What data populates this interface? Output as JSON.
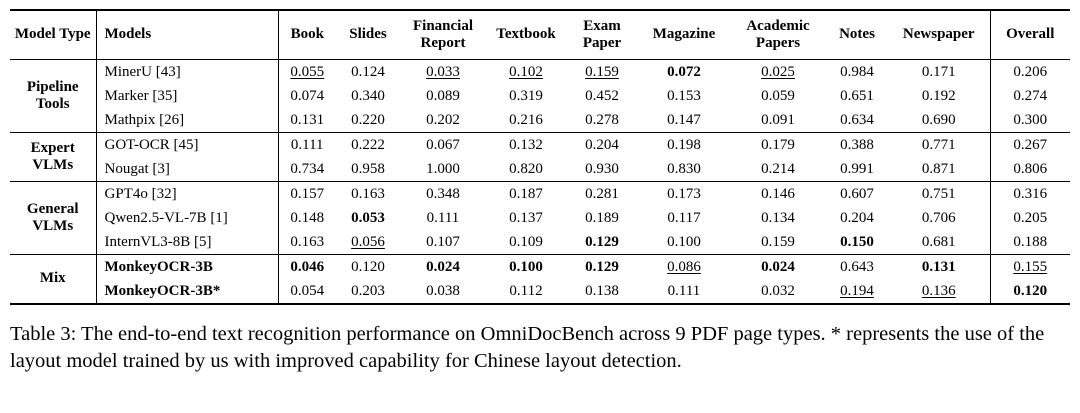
{
  "table": {
    "col_headers": [
      "Model Type",
      "Models",
      "Book",
      "Slides",
      "Financial Report",
      "Textbook",
      "Exam Paper",
      "Magazine",
      "Academic Papers",
      "Notes",
      "Newspaper",
      "Overall"
    ],
    "groups": [
      {
        "type": "Pipeline Tools",
        "rows": [
          {
            "model": "MinerU [43]",
            "model_bold": false,
            "cells": [
              {
                "t": "0.055",
                "f": "u"
              },
              {
                "t": "0.124",
                "f": ""
              },
              {
                "t": "0.033",
                "f": "u"
              },
              {
                "t": "0.102",
                "f": "u"
              },
              {
                "t": "0.159",
                "f": "u"
              },
              {
                "t": "0.072",
                "f": "b"
              },
              {
                "t": "0.025",
                "f": "u"
              },
              {
                "t": "0.984",
                "f": ""
              },
              {
                "t": "0.171",
                "f": ""
              },
              {
                "t": "0.206",
                "f": ""
              }
            ]
          },
          {
            "model": "Marker [35]",
            "model_bold": false,
            "cells": [
              {
                "t": "0.074",
                "f": ""
              },
              {
                "t": "0.340",
                "f": ""
              },
              {
                "t": "0.089",
                "f": ""
              },
              {
                "t": "0.319",
                "f": ""
              },
              {
                "t": "0.452",
                "f": ""
              },
              {
                "t": "0.153",
                "f": ""
              },
              {
                "t": "0.059",
                "f": ""
              },
              {
                "t": "0.651",
                "f": ""
              },
              {
                "t": "0.192",
                "f": ""
              },
              {
                "t": "0.274",
                "f": ""
              }
            ]
          },
          {
            "model": "Mathpix [26]",
            "model_bold": false,
            "cells": [
              {
                "t": "0.131",
                "f": ""
              },
              {
                "t": "0.220",
                "f": ""
              },
              {
                "t": "0.202",
                "f": ""
              },
              {
                "t": "0.216",
                "f": ""
              },
              {
                "t": "0.278",
                "f": ""
              },
              {
                "t": "0.147",
                "f": ""
              },
              {
                "t": "0.091",
                "f": ""
              },
              {
                "t": "0.634",
                "f": ""
              },
              {
                "t": "0.690",
                "f": ""
              },
              {
                "t": "0.300",
                "f": ""
              }
            ]
          }
        ]
      },
      {
        "type": "Expert VLMs",
        "rows": [
          {
            "model": "GOT-OCR [45]",
            "model_bold": false,
            "cells": [
              {
                "t": "0.111",
                "f": ""
              },
              {
                "t": "0.222",
                "f": ""
              },
              {
                "t": "0.067",
                "f": ""
              },
              {
                "t": "0.132",
                "f": ""
              },
              {
                "t": "0.204",
                "f": ""
              },
              {
                "t": "0.198",
                "f": ""
              },
              {
                "t": "0.179",
                "f": ""
              },
              {
                "t": "0.388",
                "f": ""
              },
              {
                "t": "0.771",
                "f": ""
              },
              {
                "t": "0.267",
                "f": ""
              }
            ]
          },
          {
            "model": "Nougat [3]",
            "model_bold": false,
            "cells": [
              {
                "t": "0.734",
                "f": ""
              },
              {
                "t": "0.958",
                "f": ""
              },
              {
                "t": "1.000",
                "f": ""
              },
              {
                "t": "0.820",
                "f": ""
              },
              {
                "t": "0.930",
                "f": ""
              },
              {
                "t": "0.830",
                "f": ""
              },
              {
                "t": "0.214",
                "f": ""
              },
              {
                "t": "0.991",
                "f": ""
              },
              {
                "t": "0.871",
                "f": ""
              },
              {
                "t": "0.806",
                "f": ""
              }
            ]
          }
        ]
      },
      {
        "type": "General VLMs",
        "rows": [
          {
            "model": "GPT4o [32]",
            "model_bold": false,
            "cells": [
              {
                "t": "0.157",
                "f": ""
              },
              {
                "t": "0.163",
                "f": ""
              },
              {
                "t": "0.348",
                "f": ""
              },
              {
                "t": "0.187",
                "f": ""
              },
              {
                "t": "0.281",
                "f": ""
              },
              {
                "t": "0.173",
                "f": ""
              },
              {
                "t": "0.146",
                "f": ""
              },
              {
                "t": "0.607",
                "f": ""
              },
              {
                "t": "0.751",
                "f": ""
              },
              {
                "t": "0.316",
                "f": ""
              }
            ]
          },
          {
            "model": "Qwen2.5-VL-7B [1]",
            "model_bold": false,
            "cells": [
              {
                "t": "0.148",
                "f": ""
              },
              {
                "t": "0.053",
                "f": "b"
              },
              {
                "t": "0.111",
                "f": ""
              },
              {
                "t": "0.137",
                "f": ""
              },
              {
                "t": "0.189",
                "f": ""
              },
              {
                "t": "0.117",
                "f": ""
              },
              {
                "t": "0.134",
                "f": ""
              },
              {
                "t": "0.204",
                "f": ""
              },
              {
                "t": "0.706",
                "f": ""
              },
              {
                "t": "0.205",
                "f": ""
              }
            ]
          },
          {
            "model": "InternVL3-8B [5]",
            "model_bold": false,
            "cells": [
              {
                "t": "0.163",
                "f": ""
              },
              {
                "t": "0.056",
                "f": "u"
              },
              {
                "t": "0.107",
                "f": ""
              },
              {
                "t": "0.109",
                "f": ""
              },
              {
                "t": "0.129",
                "f": "b"
              },
              {
                "t": "0.100",
                "f": ""
              },
              {
                "t": "0.159",
                "f": ""
              },
              {
                "t": "0.150",
                "f": "b"
              },
              {
                "t": "0.681",
                "f": ""
              },
              {
                "t": "0.188",
                "f": ""
              }
            ]
          }
        ]
      },
      {
        "type": "Mix",
        "rows": [
          {
            "model": "MonkeyOCR-3B",
            "model_bold": true,
            "cells": [
              {
                "t": "0.046",
                "f": "b"
              },
              {
                "t": "0.120",
                "f": ""
              },
              {
                "t": "0.024",
                "f": "b"
              },
              {
                "t": "0.100",
                "f": "b"
              },
              {
                "t": "0.129",
                "f": "b"
              },
              {
                "t": "0.086",
                "f": "u"
              },
              {
                "t": "0.024",
                "f": "b"
              },
              {
                "t": "0.643",
                "f": ""
              },
              {
                "t": "0.131",
                "f": "b"
              },
              {
                "t": "0.155",
                "f": "u"
              }
            ]
          },
          {
            "model": "MonkeyOCR-3B*",
            "model_bold": true,
            "cells": [
              {
                "t": "0.054",
                "f": ""
              },
              {
                "t": "0.203",
                "f": ""
              },
              {
                "t": "0.038",
                "f": ""
              },
              {
                "t": "0.112",
                "f": ""
              },
              {
                "t": "0.138",
                "f": ""
              },
              {
                "t": "0.111",
                "f": ""
              },
              {
                "t": "0.032",
                "f": ""
              },
              {
                "t": "0.194",
                "f": "u"
              },
              {
                "t": "0.136",
                "f": "u"
              },
              {
                "t": "0.120",
                "f": "b"
              }
            ]
          }
        ]
      }
    ]
  },
  "caption": {
    "text": "Table 3: The end-to-end text recognition performance on OmniDocBench across 9 PDF page types. * represents the use of the layout model trained by us with improved capability for Chinese layout detection."
  }
}
